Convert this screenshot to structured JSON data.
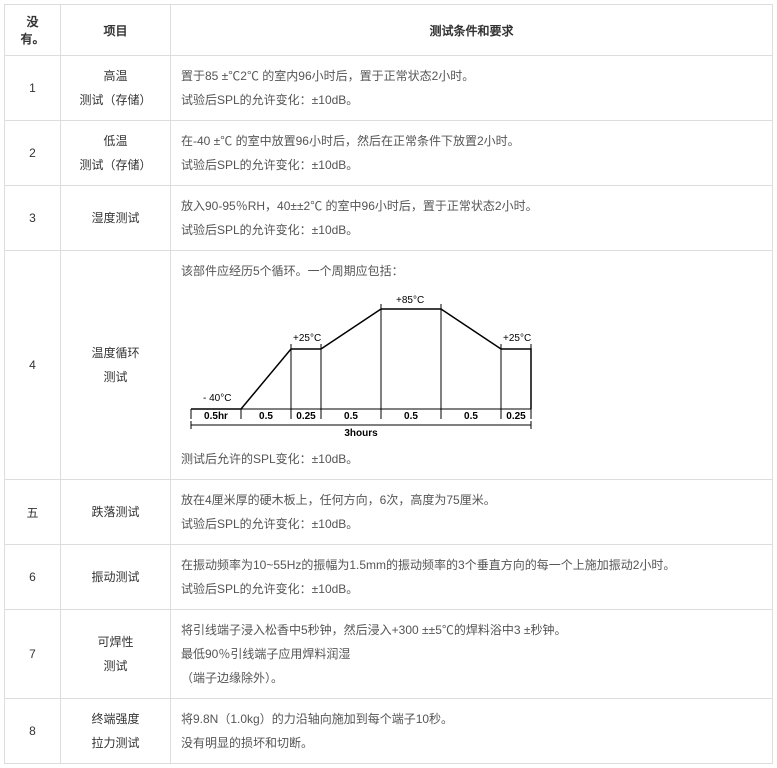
{
  "headers": {
    "no": "没有。",
    "item": "项目",
    "cond": "测试条件和要求"
  },
  "rows": [
    {
      "no": "1",
      "item": "高温\n测试（存储）",
      "cond": "置于85 ±℃2℃ 的室内96小时后，置于正常状态2小时。\n试验后SPL的允许变化：±10dB。"
    },
    {
      "no": "2",
      "item": "低温\n测试（存储）",
      "cond": "在-40 ±℃ 的室中放置96小时后，然后在正常条件下放置2小时。\n试验后SPL的允许变化：±10dB。"
    },
    {
      "no": "3",
      "item": "湿度测试",
      "cond": "放入90-95％RH，40±±2℃ 的室中96小时后，置于正常状态2小时。\n试验后SPL的允许变化：±10dB。"
    },
    {
      "no": "4",
      "item": "温度循环\n测试",
      "cond_top": "该部件应经历5个循环。一个周期应包括：",
      "cond_bottom": "测试后允许的SPL变化：±10dB。",
      "diagram": {
        "labels": {
          "tm40": "- 40°C",
          "t25a": "+25°C",
          "t85": "+85°C",
          "t25b": "+25°C",
          "d1": "0.5hr",
          "d2": "0.5",
          "d3": "0.25",
          "d4": "0.5",
          "d5": "0.5",
          "d6": "0.5",
          "d7": "0.25",
          "total": "3hours"
        },
        "colors": {
          "line": "#000000"
        }
      }
    },
    {
      "no": "五",
      "item": "跌落测试",
      "cond": "放在4厘米厚的硬木板上，任何方向，6次，高度为75厘米。\n试验后SPL的允许变化：±10dB。"
    },
    {
      "no": "6",
      "item": "振动测试",
      "cond": "在振动频率为10~55Hz的振幅为1.5mm的振动频率的3个垂直方向的每一个上施加振动2小时。\n试验后SPL的允许变化：±10dB。"
    },
    {
      "no": "7",
      "item": "可焊性\n测试",
      "cond": "将引线端子浸入松香中5秒钟，然后浸入+300 ±±5℃的焊料浴中3 ±秒钟。\n最低90％引线端子应用焊料润湿\n（端子边缘除外）。"
    },
    {
      "no": "8",
      "item": "终端强度\n拉力测试",
      "cond": "将9.8N（1.0kg）的力沿轴向施加到每个端子10秒。\n没有明显的损坏和切断。"
    }
  ]
}
